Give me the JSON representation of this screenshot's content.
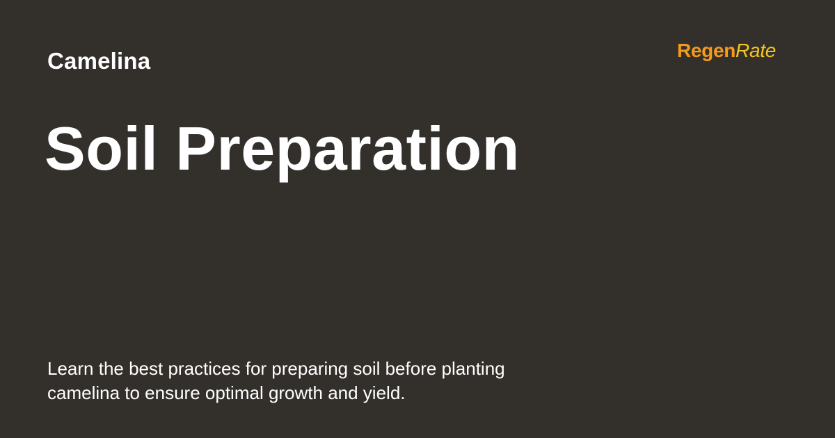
{
  "category": "Camelina",
  "title": "Soil Preparation",
  "brand": {
    "part1": "Regen",
    "part2": "Rate",
    "color1": "#f59a1b",
    "color2": "#f7c61e"
  },
  "description": "Learn the best practices for preparing soil before planting camelina to ensure optimal growth and yield.",
  "colors": {
    "background": "#33302c",
    "text": "#ffffff"
  }
}
